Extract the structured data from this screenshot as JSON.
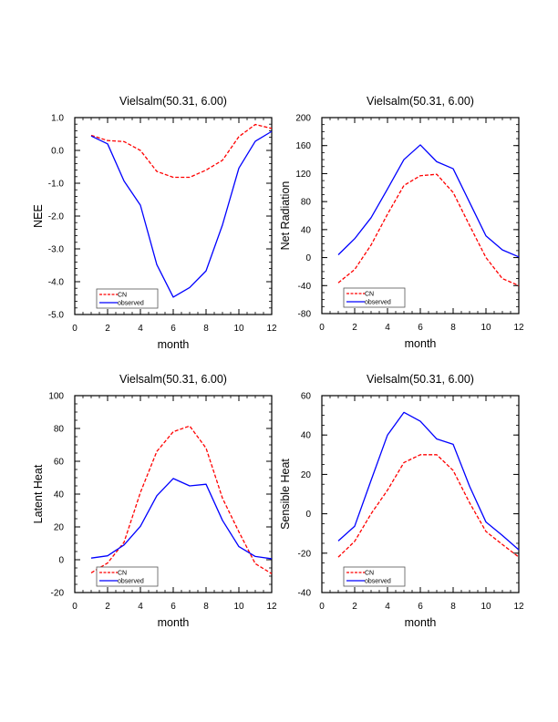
{
  "colors": {
    "cn": "#ff0000",
    "observed": "#0000ff",
    "axis": "#000000"
  },
  "chart_data": [
    {
      "type": "line",
      "title": "Vielsalm(50.31, 6.00)",
      "xlabel": "month",
      "ylabel": "NEE",
      "xlim": [
        0,
        12
      ],
      "ylim": [
        -5.0,
        1.0
      ],
      "xticks": [
        0,
        2,
        4,
        6,
        8,
        10,
        12
      ],
      "xtick_labels": [
        "0",
        "2",
        "4",
        "6",
        "8",
        "10",
        "12"
      ],
      "x_minor_step": 0.5,
      "yticks": [
        1.0,
        0.0,
        -1.0,
        -2.0,
        -3.0,
        -4.0,
        -5.0
      ],
      "ytick_labels": [
        "1.0",
        "0.0",
        "-1.0",
        "-2.0",
        "-3.0",
        "-4.0",
        "-5.0"
      ],
      "y_minor_step": 0.2,
      "legend_position": "bottom-left",
      "x": [
        1,
        2,
        3,
        4,
        5,
        6,
        7,
        8,
        9,
        10,
        11,
        12
      ],
      "series": [
        {
          "name": "CN",
          "style": "dashed",
          "values": [
            0.46,
            0.3,
            0.27,
            0.0,
            -0.64,
            -0.82,
            -0.82,
            -0.6,
            -0.3,
            0.42,
            0.79,
            0.67
          ]
        },
        {
          "name": "observed",
          "style": "solid",
          "values": [
            0.44,
            0.2,
            -0.93,
            -1.67,
            -3.48,
            -4.47,
            -4.18,
            -3.67,
            -2.27,
            -0.54,
            0.28,
            0.58
          ]
        }
      ]
    },
    {
      "type": "line",
      "title": "Vielsalm(50.31, 6.00)",
      "xlabel": "month",
      "ylabel": "Net Radiation",
      "xlim": [
        0,
        12
      ],
      "ylim": [
        -80,
        200
      ],
      "xticks": [
        0,
        2,
        4,
        6,
        8,
        10,
        12
      ],
      "xtick_labels": [
        "0",
        "2",
        "4",
        "6",
        "8",
        "10",
        "12"
      ],
      "x_minor_step": 0.5,
      "yticks": [
        200,
        160,
        120,
        80,
        40,
        0,
        -40,
        -80
      ],
      "ytick_labels": [
        "200",
        "160",
        "120",
        "80",
        "40",
        "0",
        "-40",
        "-80"
      ],
      "y_minor_step": 10,
      "legend_position": "bottom-left",
      "x": [
        1,
        2,
        3,
        4,
        5,
        6,
        7,
        8,
        9,
        10,
        11,
        12
      ],
      "series": [
        {
          "name": "CN",
          "style": "dashed",
          "values": [
            -36,
            -17,
            18,
            62,
            103,
            117,
            119,
            93,
            46,
            0,
            -30,
            -40
          ]
        },
        {
          "name": "observed",
          "style": "solid",
          "values": [
            4,
            27,
            57,
            98,
            140,
            161,
            137,
            127,
            79,
            31,
            11,
            1
          ]
        }
      ]
    },
    {
      "type": "line",
      "title": "Vielsalm(50.31, 6.00)",
      "xlabel": "month",
      "ylabel": "Latent Heat",
      "xlim": [
        0,
        12
      ],
      "ylim": [
        -20,
        100
      ],
      "xticks": [
        0,
        2,
        4,
        6,
        8,
        10,
        12
      ],
      "xtick_labels": [
        "0",
        "2",
        "4",
        "6",
        "8",
        "10",
        "12"
      ],
      "x_minor_step": 0.5,
      "yticks": [
        100,
        80,
        60,
        40,
        20,
        0,
        -20
      ],
      "ytick_labels": [
        "100",
        "80",
        "60",
        "40",
        "20",
        "0",
        "-20"
      ],
      "y_minor_step": 5,
      "legend_position": "bottom-left",
      "x": [
        1,
        2,
        3,
        4,
        5,
        6,
        7,
        8,
        9,
        10,
        11,
        12
      ],
      "series": [
        {
          "name": "CN",
          "style": "dashed",
          "values": [
            -8,
            -2,
            10.6,
            41,
            66,
            78,
            81.5,
            68,
            37.5,
            17,
            -2.4,
            -8.5
          ]
        },
        {
          "name": "observed",
          "style": "solid",
          "values": [
            1,
            2.4,
            9,
            20.4,
            39,
            49.5,
            45,
            46,
            24,
            8,
            2,
            0.6
          ]
        }
      ]
    },
    {
      "type": "line",
      "title": "Vielsalm(50.31, 6.00)",
      "xlabel": "month",
      "ylabel": "Sensible Heat",
      "xlim": [
        0,
        12
      ],
      "ylim": [
        -40,
        60
      ],
      "xticks": [
        0,
        2,
        4,
        6,
        8,
        10,
        12
      ],
      "xtick_labels": [
        "0",
        "2",
        "4",
        "6",
        "8",
        "10",
        "12"
      ],
      "x_minor_step": 0.5,
      "yticks": [
        60,
        40,
        20,
        0,
        -20,
        -40
      ],
      "ytick_labels": [
        "60",
        "40",
        "20",
        "0",
        "-20",
        "-40"
      ],
      "y_minor_step": 5,
      "legend_position": "bottom-left",
      "x": [
        1,
        2,
        3,
        4,
        5,
        6,
        7,
        8,
        9,
        10,
        11,
        12
      ],
      "series": [
        {
          "name": "CN",
          "style": "dashed",
          "values": [
            -22,
            -14,
            0,
            12,
            26,
            30,
            30,
            22,
            5.6,
            -9,
            -15.6,
            -22
          ]
        },
        {
          "name": "observed",
          "style": "solid",
          "values": [
            -13.8,
            -6.3,
            17,
            40,
            51.5,
            47,
            38,
            35.3,
            14,
            -4.2,
            -11,
            -18.3
          ]
        }
      ]
    }
  ]
}
